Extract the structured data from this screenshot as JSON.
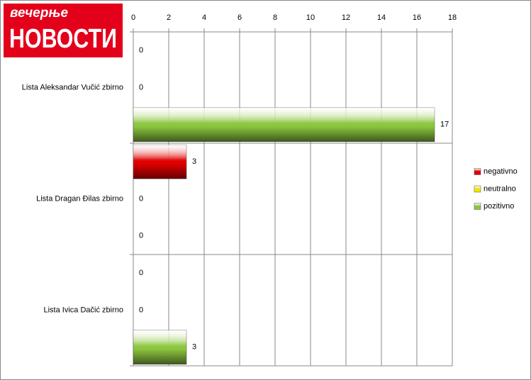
{
  "logo": {
    "small": "вечерње",
    "big": "НОВОСТИ"
  },
  "chart_data": {
    "type": "bar",
    "orientation": "horizontal",
    "categories": [
      "Lista Aleksandar Vučić zbirno",
      "Lista Dragan Đilas zbirno",
      "Lista Ivica Dačić zbirno"
    ],
    "series": [
      {
        "name": "negativno",
        "color": "#e00000",
        "values": [
          0,
          3,
          0
        ]
      },
      {
        "name": "neutralno",
        "color": "#f2e600",
        "values": [
          0,
          0,
          0
        ]
      },
      {
        "name": "pozitivno",
        "color": "#8cc63f",
        "values": [
          17,
          0,
          3
        ]
      }
    ],
    "xlim": [
      0,
      18
    ],
    "xticks": [
      0,
      2,
      4,
      6,
      8,
      10,
      12,
      14,
      16,
      18
    ],
    "grid": true,
    "legend": "right"
  }
}
